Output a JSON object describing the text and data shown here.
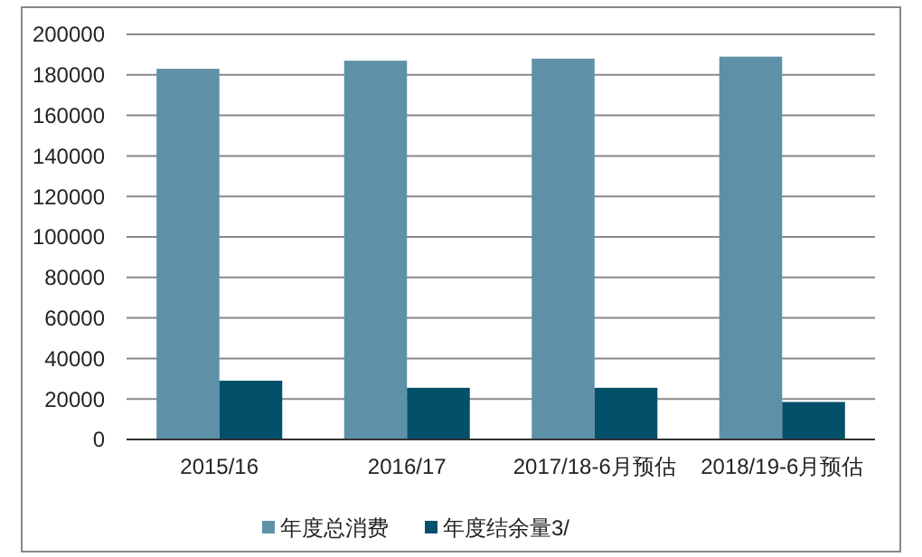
{
  "chart_data": {
    "type": "bar",
    "categories": [
      "2015/16",
      "2016/17",
      "2017/18-6月预估",
      "2018/19-6月预估"
    ],
    "series": [
      {
        "name": "年度总消费",
        "color": "#5e91a8",
        "values": [
          183000,
          187000,
          188000,
          189000
        ]
      },
      {
        "name": "年度结余量3/",
        "color": "#02506a",
        "values": [
          29000,
          25500,
          25500,
          18500
        ]
      }
    ],
    "ylim": [
      0,
      200000
    ],
    "yticks": [
      0,
      20000,
      40000,
      60000,
      80000,
      100000,
      120000,
      140000,
      160000,
      180000,
      200000
    ],
    "grid": "y",
    "legend": "bottom"
  }
}
